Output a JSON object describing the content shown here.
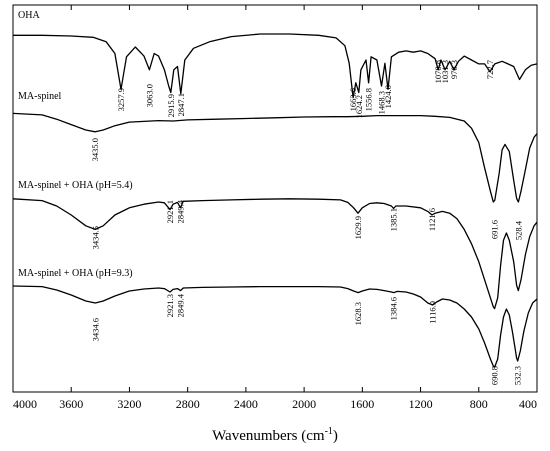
{
  "chart_data": {
    "type": "line",
    "xlabel": "Wavenumbers (cm",
    "xlabel_sup": "-1",
    "xlabel_close": ")",
    "xlim": [
      4000,
      400
    ],
    "x_ticks": [
      "4000",
      "3600",
      "3200",
      "2800",
      "2400",
      "2000",
      "1600",
      "1200",
      "800",
      "400"
    ],
    "grid": false,
    "series": [
      {
        "name": "OHA",
        "points": [
          [
            4000,
            0.02
          ],
          [
            3800,
            0.02
          ],
          [
            3600,
            0.03
          ],
          [
            3450,
            0.05
          ],
          [
            3360,
            0.12
          ],
          [
            3300,
            0.3
          ],
          [
            3257.9,
            0.85
          ],
          [
            3220,
            0.35
          ],
          [
            3160,
            0.2
          ],
          [
            3100,
            0.34
          ],
          [
            3063,
            0.55
          ],
          [
            3030,
            0.3
          ],
          [
            3000,
            0.34
          ],
          [
            2960,
            0.55
          ],
          [
            2930,
            0.8
          ],
          [
            2915.9,
            0.9
          ],
          [
            2895,
            0.55
          ],
          [
            2870,
            0.5
          ],
          [
            2847.1,
            0.92
          ],
          [
            2820,
            0.4
          ],
          [
            2760,
            0.22
          ],
          [
            2650,
            0.12
          ],
          [
            2500,
            0.04
          ],
          [
            2300,
            0.0
          ],
          [
            2100,
            0.0
          ],
          [
            1900,
            0.02
          ],
          [
            1780,
            0.06
          ],
          [
            1720,
            0.18
          ],
          [
            1690,
            0.45
          ],
          [
            1663.6,
            0.98
          ],
          [
            1645,
            0.75
          ],
          [
            1624.2,
            0.9
          ],
          [
            1610,
            0.55
          ],
          [
            1575,
            0.4
          ],
          [
            1556.8,
            0.75
          ],
          [
            1540,
            0.35
          ],
          [
            1500,
            0.4
          ],
          [
            1468.3,
            0.8
          ],
          [
            1445,
            0.45
          ],
          [
            1424,
            0.85
          ],
          [
            1400,
            0.35
          ],
          [
            1350,
            0.28
          ],
          [
            1300,
            0.26
          ],
          [
            1250,
            0.28
          ],
          [
            1200,
            0.26
          ],
          [
            1150,
            0.3
          ],
          [
            1100,
            0.38
          ],
          [
            1078.8,
            0.55
          ],
          [
            1060,
            0.4
          ],
          [
            1031.3,
            0.55
          ],
          [
            1000,
            0.42
          ],
          [
            970.3,
            0.55
          ],
          [
            940,
            0.42
          ],
          [
            900,
            0.34
          ],
          [
            850,
            0.4
          ],
          [
            800,
            0.46
          ],
          [
            760,
            0.46
          ],
          [
            722.7,
            0.58
          ],
          [
            690,
            0.46
          ],
          [
            640,
            0.42
          ],
          [
            600,
            0.46
          ],
          [
            560,
            0.5
          ],
          [
            520,
            0.7
          ],
          [
            480,
            0.55
          ],
          [
            440,
            0.48
          ],
          [
            400,
            0.46
          ]
        ]
      },
      {
        "name": "MA-spinel",
        "points": [
          [
            4000,
            0.04
          ],
          [
            3800,
            0.08
          ],
          [
            3700,
            0.2
          ],
          [
            3600,
            0.35
          ],
          [
            3500,
            0.5
          ],
          [
            3435,
            0.55
          ],
          [
            3380,
            0.5
          ],
          [
            3300,
            0.38
          ],
          [
            3200,
            0.28
          ],
          [
            3100,
            0.26
          ],
          [
            3000,
            0.24
          ],
          [
            2900,
            0.25
          ],
          [
            2800,
            0.22
          ],
          [
            2600,
            0.2
          ],
          [
            2400,
            0.18
          ],
          [
            2200,
            0.16
          ],
          [
            2000,
            0.14
          ],
          [
            1800,
            0.13
          ],
          [
            1700,
            0.13
          ],
          [
            1600,
            0.12
          ],
          [
            1500,
            0.1
          ],
          [
            1400,
            0.1
          ],
          [
            1300,
            0.1
          ],
          [
            1200,
            0.1
          ],
          [
            1100,
            0.12
          ],
          [
            1000,
            0.15
          ],
          [
            900,
            0.25
          ],
          [
            850,
            0.45
          ],
          [
            800,
            0.85
          ],
          [
            760,
            1.55
          ],
          [
            720,
            2.2
          ],
          [
            700,
            2.5
          ],
          [
            690,
            2.45
          ],
          [
            660,
            1.7
          ],
          [
            640,
            1.05
          ],
          [
            620,
            0.9
          ],
          [
            590,
            1.1
          ],
          [
            560,
            1.9
          ],
          [
            540,
            2.4
          ],
          [
            528,
            2.5
          ],
          [
            510,
            2.2
          ],
          [
            480,
            1.6
          ],
          [
            450,
            1.0
          ],
          [
            420,
            0.7
          ],
          [
            400,
            0.6
          ]
        ]
      },
      {
        "name": "MA-spinel + OHA (pH=5.4)",
        "points": [
          [
            4000,
            0.05
          ],
          [
            3800,
            0.1
          ],
          [
            3700,
            0.25
          ],
          [
            3600,
            0.5
          ],
          [
            3500,
            0.8
          ],
          [
            3434.5,
            0.9
          ],
          [
            3380,
            0.8
          ],
          [
            3300,
            0.5
          ],
          [
            3200,
            0.3
          ],
          [
            3100,
            0.2
          ],
          [
            3000,
            0.14
          ],
          [
            2960,
            0.16
          ],
          [
            2921.1,
            0.35
          ],
          [
            2900,
            0.2
          ],
          [
            2870,
            0.15
          ],
          [
            2849.4,
            0.3
          ],
          [
            2830,
            0.12
          ],
          [
            2700,
            0.1
          ],
          [
            2500,
            0.08
          ],
          [
            2300,
            0.06
          ],
          [
            2100,
            0.05
          ],
          [
            1900,
            0.06
          ],
          [
            1750,
            0.08
          ],
          [
            1700,
            0.15
          ],
          [
            1660,
            0.3
          ],
          [
            1629.9,
            0.45
          ],
          [
            1600,
            0.3
          ],
          [
            1550,
            0.18
          ],
          [
            1500,
            0.16
          ],
          [
            1450,
            0.18
          ],
          [
            1400,
            0.25
          ],
          [
            1385.1,
            0.32
          ],
          [
            1370,
            0.25
          ],
          [
            1300,
            0.25
          ],
          [
            1200,
            0.3
          ],
          [
            1150,
            0.4
          ],
          [
            1121.6,
            0.5
          ],
          [
            1100,
            0.45
          ],
          [
            1050,
            0.4
          ],
          [
            1000,
            0.45
          ],
          [
            950,
            0.6
          ],
          [
            900,
            0.9
          ],
          [
            850,
            1.3
          ],
          [
            800,
            1.8
          ],
          [
            760,
            2.3
          ],
          [
            720,
            2.8
          ],
          [
            700,
            3.05
          ],
          [
            691.6,
            3.1
          ],
          [
            670,
            2.8
          ],
          [
            650,
            1.9
          ],
          [
            630,
            1.2
          ],
          [
            610,
            1.0
          ],
          [
            590,
            1.2
          ],
          [
            560,
            1.8
          ],
          [
            540,
            2.45
          ],
          [
            528.4,
            2.6
          ],
          [
            510,
            2.3
          ],
          [
            480,
            1.6
          ],
          [
            450,
            1.1
          ],
          [
            420,
            0.8
          ],
          [
            400,
            0.7
          ]
        ]
      },
      {
        "name": "MA-spinel + OHA (pH=9.3)",
        "points": [
          [
            4000,
            0.05
          ],
          [
            3800,
            0.08
          ],
          [
            3700,
            0.25
          ],
          [
            3600,
            0.5
          ],
          [
            3500,
            0.8
          ],
          [
            3434.6,
            0.9
          ],
          [
            3380,
            0.8
          ],
          [
            3300,
            0.55
          ],
          [
            3200,
            0.3
          ],
          [
            3100,
            0.2
          ],
          [
            3000,
            0.15
          ],
          [
            2960,
            0.18
          ],
          [
            2921.3,
            0.35
          ],
          [
            2900,
            0.22
          ],
          [
            2870,
            0.18
          ],
          [
            2849.4,
            0.28
          ],
          [
            2830,
            0.15
          ],
          [
            2700,
            0.12
          ],
          [
            2500,
            0.1
          ],
          [
            2300,
            0.08
          ],
          [
            2100,
            0.08
          ],
          [
            1900,
            0.08
          ],
          [
            1750,
            0.1
          ],
          [
            1700,
            0.18
          ],
          [
            1660,
            0.3
          ],
          [
            1628.3,
            0.38
          ],
          [
            1600,
            0.3
          ],
          [
            1550,
            0.2
          ],
          [
            1500,
            0.22
          ],
          [
            1450,
            0.28
          ],
          [
            1400,
            0.35
          ],
          [
            1384.6,
            0.38
          ],
          [
            1360,
            0.32
          ],
          [
            1300,
            0.35
          ],
          [
            1250,
            0.45
          ],
          [
            1200,
            0.6
          ],
          [
            1150,
            0.9
          ],
          [
            1116.9,
            1.0
          ],
          [
            1090,
            0.85
          ],
          [
            1050,
            0.7
          ],
          [
            1000,
            0.75
          ],
          [
            950,
            0.9
          ],
          [
            900,
            1.2
          ],
          [
            850,
            1.6
          ],
          [
            800,
            2.2
          ],
          [
            760,
            2.9
          ],
          [
            720,
            3.7
          ],
          [
            700,
            4.05
          ],
          [
            690.8,
            4.1
          ],
          [
            670,
            3.7
          ],
          [
            650,
            2.5
          ],
          [
            630,
            1.6
          ],
          [
            610,
            1.2
          ],
          [
            590,
            1.5
          ],
          [
            570,
            2.3
          ],
          [
            550,
            3.2
          ],
          [
            540,
            3.65
          ],
          [
            532.3,
            3.8
          ],
          [
            515,
            3.3
          ],
          [
            490,
            2.3
          ],
          [
            460,
            1.4
          ],
          [
            430,
            0.9
          ],
          [
            400,
            0.7
          ]
        ]
      }
    ],
    "annotations": [
      [
        "3257.9",
        "3063.0",
        "2915.9",
        "2847.1",
        "1663.6",
        "1624.2",
        "1556.8",
        "1468.3",
        "1424.0",
        "1078.8",
        "1031.3",
        "970.3",
        "722.7"
      ],
      [
        "3435.0"
      ],
      [
        "3434.5",
        "2921.1",
        "2849.4",
        "1629.9",
        "1385.1",
        "1121.6",
        "691.6",
        "528.4"
      ],
      [
        "3434.6",
        "2921.3",
        "2849.4",
        "1628.3",
        "1384.6",
        "1116.9",
        "690.8",
        "532.3"
      ]
    ]
  }
}
